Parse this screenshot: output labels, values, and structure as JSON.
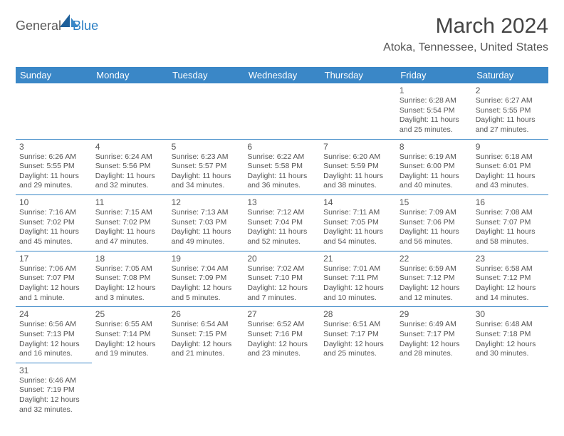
{
  "logo": {
    "part1": "General",
    "part2": "Blue"
  },
  "title": "March 2024",
  "subtitle": "Atoka, Tennessee, United States",
  "colors": {
    "header_bg": "#3a87c7",
    "header_text": "#ffffff",
    "border": "#3a87c7",
    "text": "#555555",
    "logo_gray": "#5a5a5a",
    "logo_blue": "#2b7fc4"
  },
  "weekdays": [
    "Sunday",
    "Monday",
    "Tuesday",
    "Wednesday",
    "Thursday",
    "Friday",
    "Saturday"
  ],
  "weeks": [
    [
      null,
      null,
      null,
      null,
      null,
      {
        "n": "1",
        "sr": "Sunrise: 6:28 AM",
        "ss": "Sunset: 5:54 PM",
        "d1": "Daylight: 11 hours",
        "d2": "and 25 minutes."
      },
      {
        "n": "2",
        "sr": "Sunrise: 6:27 AM",
        "ss": "Sunset: 5:55 PM",
        "d1": "Daylight: 11 hours",
        "d2": "and 27 minutes."
      }
    ],
    [
      {
        "n": "3",
        "sr": "Sunrise: 6:26 AM",
        "ss": "Sunset: 5:55 PM",
        "d1": "Daylight: 11 hours",
        "d2": "and 29 minutes."
      },
      {
        "n": "4",
        "sr": "Sunrise: 6:24 AM",
        "ss": "Sunset: 5:56 PM",
        "d1": "Daylight: 11 hours",
        "d2": "and 32 minutes."
      },
      {
        "n": "5",
        "sr": "Sunrise: 6:23 AM",
        "ss": "Sunset: 5:57 PM",
        "d1": "Daylight: 11 hours",
        "d2": "and 34 minutes."
      },
      {
        "n": "6",
        "sr": "Sunrise: 6:22 AM",
        "ss": "Sunset: 5:58 PM",
        "d1": "Daylight: 11 hours",
        "d2": "and 36 minutes."
      },
      {
        "n": "7",
        "sr": "Sunrise: 6:20 AM",
        "ss": "Sunset: 5:59 PM",
        "d1": "Daylight: 11 hours",
        "d2": "and 38 minutes."
      },
      {
        "n": "8",
        "sr": "Sunrise: 6:19 AM",
        "ss": "Sunset: 6:00 PM",
        "d1": "Daylight: 11 hours",
        "d2": "and 40 minutes."
      },
      {
        "n": "9",
        "sr": "Sunrise: 6:18 AM",
        "ss": "Sunset: 6:01 PM",
        "d1": "Daylight: 11 hours",
        "d2": "and 43 minutes."
      }
    ],
    [
      {
        "n": "10",
        "sr": "Sunrise: 7:16 AM",
        "ss": "Sunset: 7:02 PM",
        "d1": "Daylight: 11 hours",
        "d2": "and 45 minutes."
      },
      {
        "n": "11",
        "sr": "Sunrise: 7:15 AM",
        "ss": "Sunset: 7:02 PM",
        "d1": "Daylight: 11 hours",
        "d2": "and 47 minutes."
      },
      {
        "n": "12",
        "sr": "Sunrise: 7:13 AM",
        "ss": "Sunset: 7:03 PM",
        "d1": "Daylight: 11 hours",
        "d2": "and 49 minutes."
      },
      {
        "n": "13",
        "sr": "Sunrise: 7:12 AM",
        "ss": "Sunset: 7:04 PM",
        "d1": "Daylight: 11 hours",
        "d2": "and 52 minutes."
      },
      {
        "n": "14",
        "sr": "Sunrise: 7:11 AM",
        "ss": "Sunset: 7:05 PM",
        "d1": "Daylight: 11 hours",
        "d2": "and 54 minutes."
      },
      {
        "n": "15",
        "sr": "Sunrise: 7:09 AM",
        "ss": "Sunset: 7:06 PM",
        "d1": "Daylight: 11 hours",
        "d2": "and 56 minutes."
      },
      {
        "n": "16",
        "sr": "Sunrise: 7:08 AM",
        "ss": "Sunset: 7:07 PM",
        "d1": "Daylight: 11 hours",
        "d2": "and 58 minutes."
      }
    ],
    [
      {
        "n": "17",
        "sr": "Sunrise: 7:06 AM",
        "ss": "Sunset: 7:07 PM",
        "d1": "Daylight: 12 hours",
        "d2": "and 1 minute."
      },
      {
        "n": "18",
        "sr": "Sunrise: 7:05 AM",
        "ss": "Sunset: 7:08 PM",
        "d1": "Daylight: 12 hours",
        "d2": "and 3 minutes."
      },
      {
        "n": "19",
        "sr": "Sunrise: 7:04 AM",
        "ss": "Sunset: 7:09 PM",
        "d1": "Daylight: 12 hours",
        "d2": "and 5 minutes."
      },
      {
        "n": "20",
        "sr": "Sunrise: 7:02 AM",
        "ss": "Sunset: 7:10 PM",
        "d1": "Daylight: 12 hours",
        "d2": "and 7 minutes."
      },
      {
        "n": "21",
        "sr": "Sunrise: 7:01 AM",
        "ss": "Sunset: 7:11 PM",
        "d1": "Daylight: 12 hours",
        "d2": "and 10 minutes."
      },
      {
        "n": "22",
        "sr": "Sunrise: 6:59 AM",
        "ss": "Sunset: 7:12 PM",
        "d1": "Daylight: 12 hours",
        "d2": "and 12 minutes."
      },
      {
        "n": "23",
        "sr": "Sunrise: 6:58 AM",
        "ss": "Sunset: 7:12 PM",
        "d1": "Daylight: 12 hours",
        "d2": "and 14 minutes."
      }
    ],
    [
      {
        "n": "24",
        "sr": "Sunrise: 6:56 AM",
        "ss": "Sunset: 7:13 PM",
        "d1": "Daylight: 12 hours",
        "d2": "and 16 minutes."
      },
      {
        "n": "25",
        "sr": "Sunrise: 6:55 AM",
        "ss": "Sunset: 7:14 PM",
        "d1": "Daylight: 12 hours",
        "d2": "and 19 minutes."
      },
      {
        "n": "26",
        "sr": "Sunrise: 6:54 AM",
        "ss": "Sunset: 7:15 PM",
        "d1": "Daylight: 12 hours",
        "d2": "and 21 minutes."
      },
      {
        "n": "27",
        "sr": "Sunrise: 6:52 AM",
        "ss": "Sunset: 7:16 PM",
        "d1": "Daylight: 12 hours",
        "d2": "and 23 minutes."
      },
      {
        "n": "28",
        "sr": "Sunrise: 6:51 AM",
        "ss": "Sunset: 7:17 PM",
        "d1": "Daylight: 12 hours",
        "d2": "and 25 minutes."
      },
      {
        "n": "29",
        "sr": "Sunrise: 6:49 AM",
        "ss": "Sunset: 7:17 PM",
        "d1": "Daylight: 12 hours",
        "d2": "and 28 minutes."
      },
      {
        "n": "30",
        "sr": "Sunrise: 6:48 AM",
        "ss": "Sunset: 7:18 PM",
        "d1": "Daylight: 12 hours",
        "d2": "and 30 minutes."
      }
    ],
    [
      {
        "n": "31",
        "sr": "Sunrise: 6:46 AM",
        "ss": "Sunset: 7:19 PM",
        "d1": "Daylight: 12 hours",
        "d2": "and 32 minutes."
      },
      null,
      null,
      null,
      null,
      null,
      null
    ]
  ]
}
